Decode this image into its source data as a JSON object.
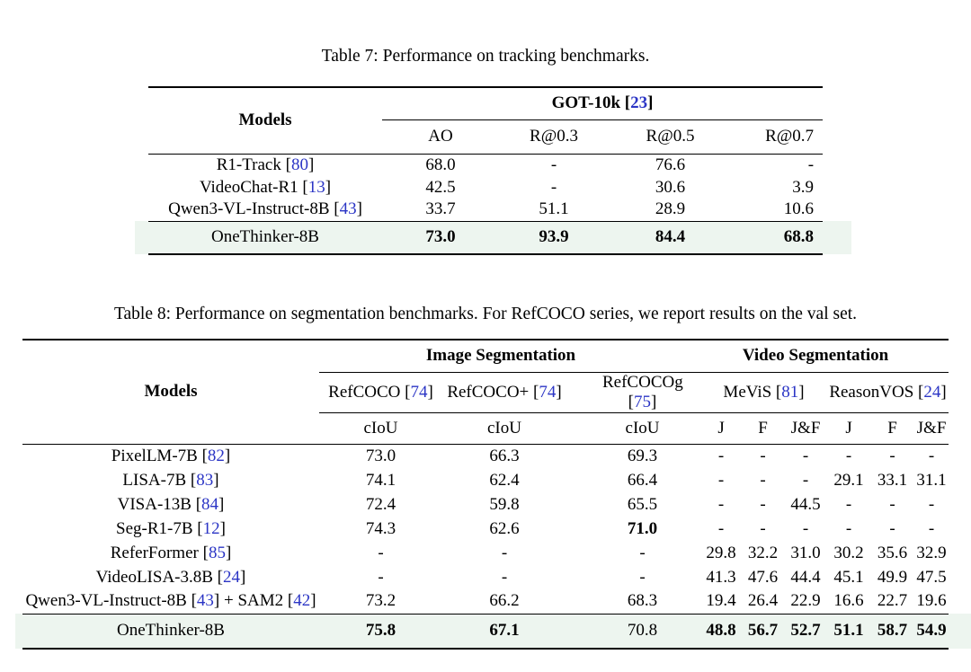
{
  "colors": {
    "citation_link": "#2b35c5",
    "highlight_row_bg": "#edf5ef"
  },
  "table7": {
    "caption": "Table 7: Performance on tracking benchmarks.",
    "models_header": "Models",
    "group_header": "GOT-10k [23]",
    "columns": [
      "AO",
      "R@0.3",
      "R@0.5",
      "R@0.7"
    ],
    "rows": [
      {
        "model": "R1-Track [80]",
        "values": [
          "68.0",
          "-",
          "76.6",
          "-"
        ]
      },
      {
        "model": "VideoChat-R1 [13]",
        "values": [
          "42.5",
          "-",
          "30.6",
          "3.9"
        ]
      },
      {
        "model": "Qwen3-VL-Instruct-8B [43]",
        "values": [
          "33.7",
          "51.1",
          "28.9",
          "10.6"
        ]
      }
    ],
    "highlight_row": {
      "model": "OneThinker-8B",
      "values": [
        {
          "v": "73.0",
          "b": 1
        },
        {
          "v": "93.9",
          "b": 1
        },
        {
          "v": "84.4",
          "b": 1
        },
        {
          "v": "68.8",
          "b": 1
        }
      ]
    }
  },
  "table8": {
    "caption": "Table 8: Performance on segmentation benchmarks. For RefCOCO series, we report results on the val set.",
    "models_header": "Models",
    "groups": [
      {
        "label": "Image Segmentation",
        "span": 3
      },
      {
        "label": "Video Segmentation",
        "span": 6
      }
    ],
    "benchmarks": [
      {
        "label": "RefCOCO [74]",
        "span": 1,
        "cls": ""
      },
      {
        "label": "RefCOCO+ [74]",
        "span": 1,
        "cls": ""
      },
      {
        "label": "RefCOCOg [75]",
        "span": 1,
        "cls": "v2"
      },
      {
        "label": "MeViS [81]",
        "span": 3,
        "cls": "bench-mevis"
      },
      {
        "label": "ReasonVOS [24]",
        "span": 3,
        "cls": ""
      }
    ],
    "metrics": [
      "cIoU",
      "cIoU",
      "cIoU",
      "J",
      "F",
      "J&F",
      "J",
      "F",
      "J&F"
    ],
    "rows": [
      {
        "model": "PixelLM-7B [82]",
        "values": [
          "73.0",
          "66.3",
          "69.3",
          "-",
          "-",
          "-",
          "-",
          "-",
          "-"
        ]
      },
      {
        "model": "LISA-7B [83]",
        "values": [
          "74.1",
          "62.4",
          "66.4",
          "-",
          "-",
          "-",
          "29.1",
          "33.1",
          "31.1"
        ]
      },
      {
        "model": "VISA-13B [84]",
        "values": [
          "72.4",
          "59.8",
          "65.5",
          "-",
          "-",
          "44.5",
          "-",
          "-",
          "-"
        ]
      },
      {
        "model": "Seg-R1-7B [12]",
        "values": [
          "74.3",
          "62.6",
          {
            "v": "71.0",
            "b": 1
          },
          "-",
          "-",
          "-",
          "-",
          "-",
          "-"
        ]
      },
      {
        "model": "ReferFormer [85]",
        "values": [
          "-",
          "-",
          "-",
          "29.8",
          "32.2",
          "31.0",
          "30.2",
          "35.6",
          "32.9"
        ]
      },
      {
        "model": "VideoLISA-3.8B [24]",
        "values": [
          "-",
          "-",
          "-",
          "41.3",
          "47.6",
          "44.4",
          "45.1",
          "49.9",
          "47.5"
        ]
      },
      {
        "model": "Qwen3-VL-Instruct-8B [43] + SAM2 [42]",
        "values": [
          "73.2",
          "66.2",
          "68.3",
          "19.4",
          "26.4",
          "22.9",
          "16.6",
          "22.7",
          "19.6"
        ]
      }
    ],
    "highlight_row": {
      "model": "OneThinker-8B",
      "values": [
        {
          "v": "75.8",
          "b": 1
        },
        {
          "v": "67.1",
          "b": 1
        },
        "70.8",
        {
          "v": "48.8",
          "b": 1
        },
        {
          "v": "56.7",
          "b": 1
        },
        {
          "v": "52.7",
          "b": 1
        },
        {
          "v": "51.1",
          "b": 1
        },
        {
          "v": "58.7",
          "b": 1
        },
        {
          "v": "54.9",
          "b": 1
        }
      ]
    }
  }
}
